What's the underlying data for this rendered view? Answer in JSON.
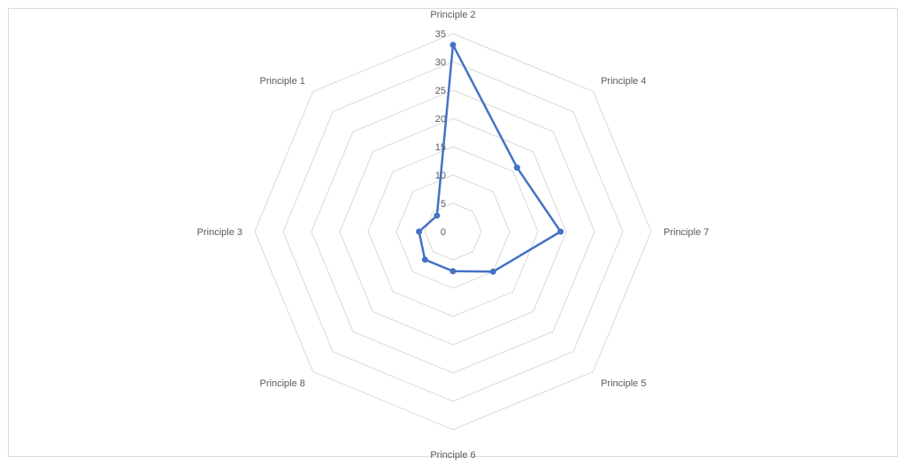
{
  "chart_data": {
    "type": "radar",
    "categories": [
      "Principle 2",
      "Principle 4",
      "Principle 7",
      "Principle 5",
      "Principle 6",
      "Principle 8",
      "Principle 3",
      "Principle 1"
    ],
    "series": [
      {
        "values": [
          33,
          16,
          19,
          10,
          7,
          7,
          6,
          4
        ],
        "color": "#4472C4"
      }
    ],
    "rlim": [
      0,
      35
    ],
    "ticks": [
      "0",
      "5",
      "10",
      "15",
      "20",
      "25",
      "30",
      "35"
    ],
    "tick_values": [
      0,
      5,
      10,
      15,
      20,
      25,
      30,
      35
    ],
    "grid": true,
    "grid_color": "#d9d9d9",
    "title": "",
    "legend": "none"
  }
}
